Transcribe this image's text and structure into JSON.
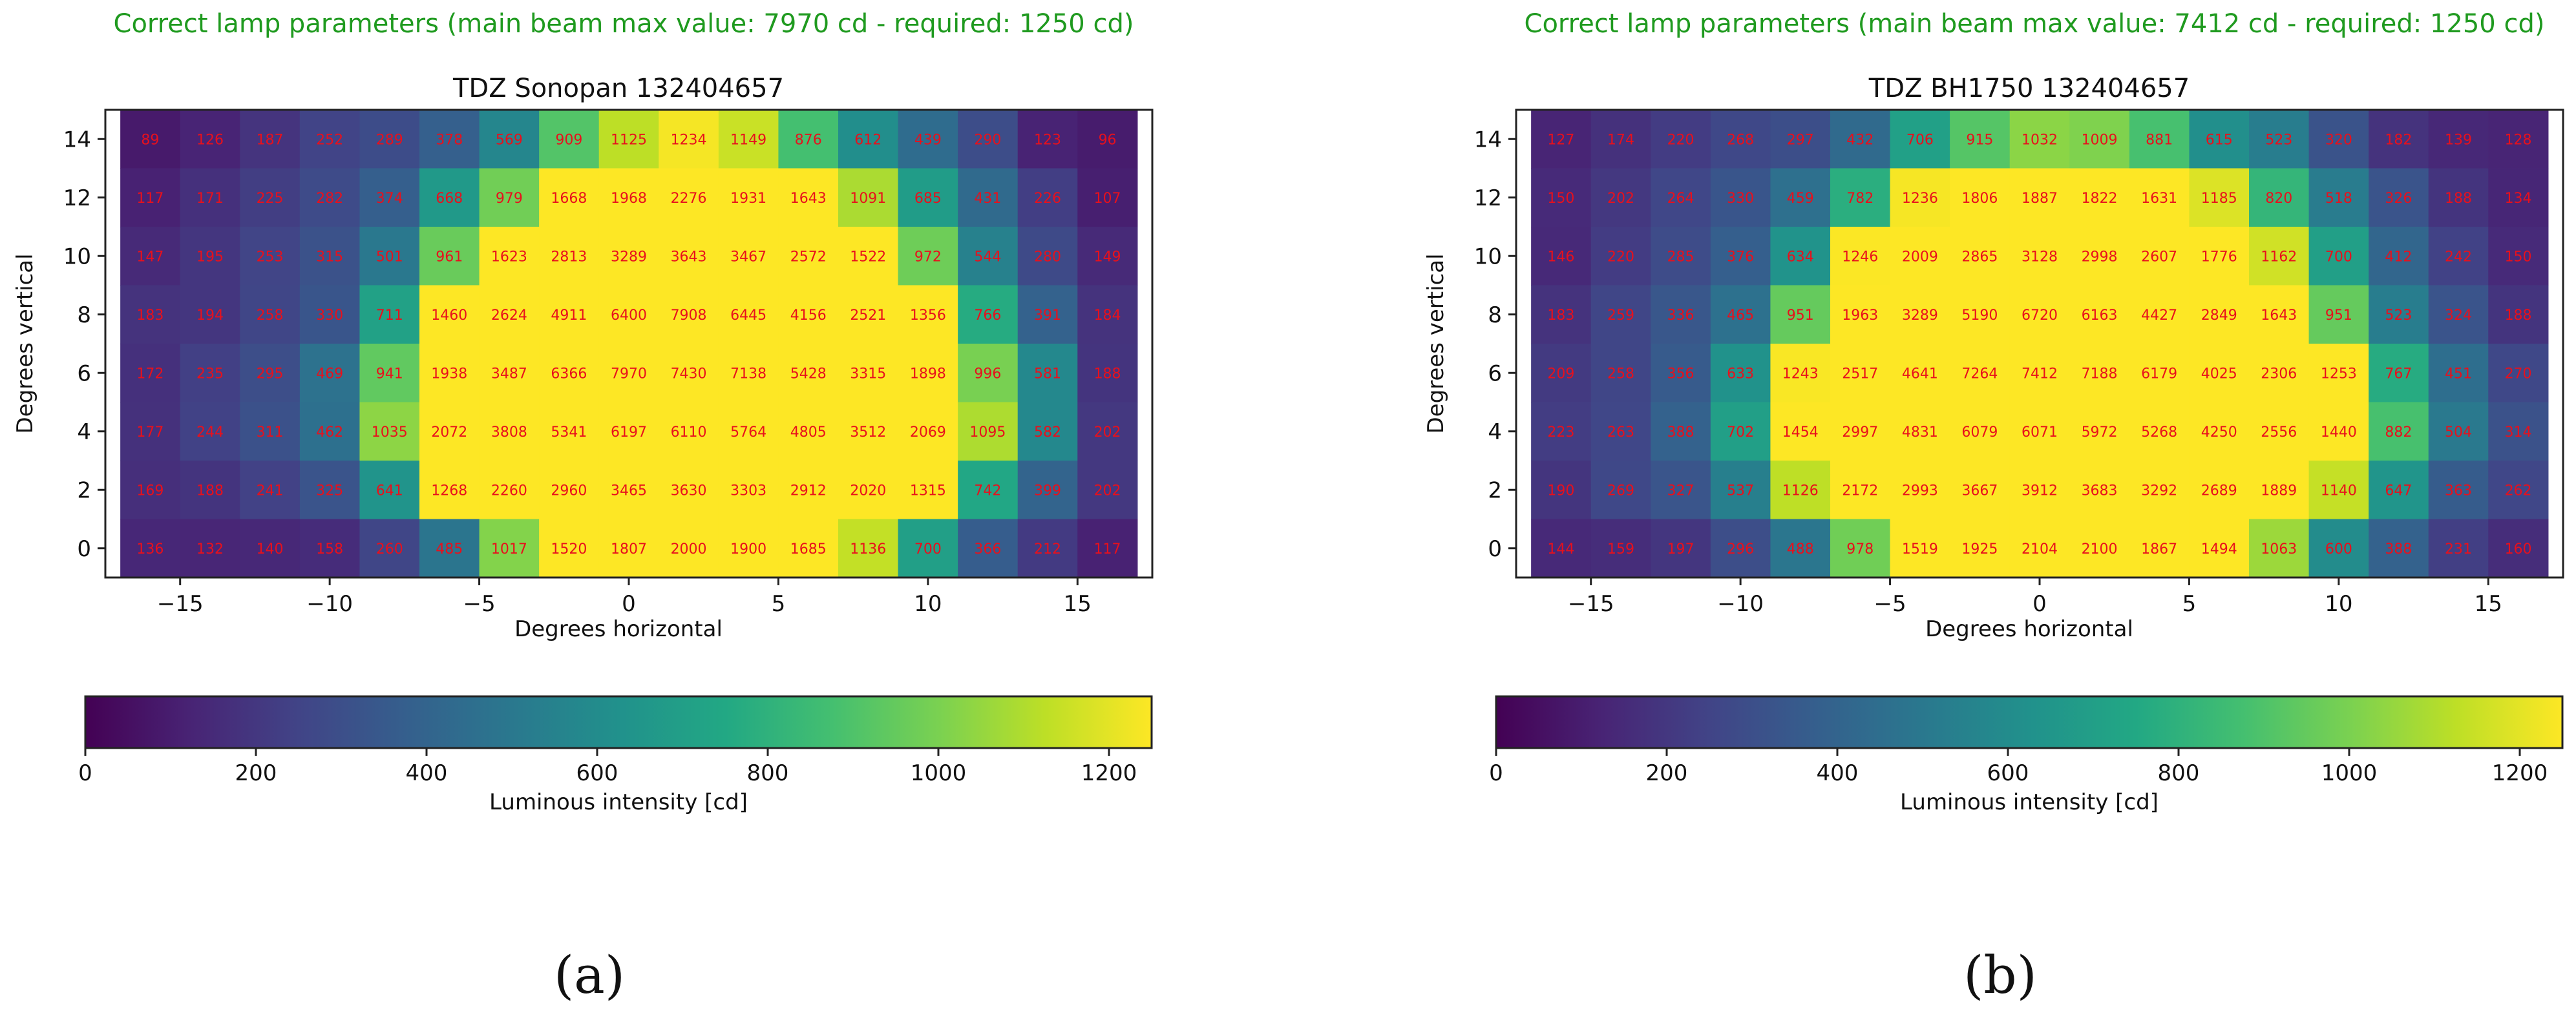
{
  "figure": {
    "subcaptions": [
      "(a)",
      "(b)"
    ]
  },
  "chart_data": [
    {
      "type": "heatmap",
      "status": "Correct lamp parameters (main beam max value: 7970 cd - required: 1250 cd)",
      "status_color": "#1f9a1f",
      "title": "TDZ Sonopan 132404657",
      "xlabel": "Degrees horizontal",
      "ylabel": "Degrees vertical",
      "x": [
        -16,
        -14,
        -12,
        -10,
        -8,
        -6,
        -4,
        -2,
        0,
        2,
        4,
        6,
        8,
        10,
        12,
        14,
        16
      ],
      "y": [
        14,
        12,
        10,
        8,
        6,
        4,
        2,
        0
      ],
      "xlim": [
        -17.5,
        17.5
      ],
      "ylim": [
        -1,
        15
      ],
      "xticks": [
        -15,
        -10,
        -5,
        0,
        5,
        10,
        15
      ],
      "xtick_labels": [
        "−15",
        "−10",
        "−5",
        "0",
        "5",
        "10",
        "15"
      ],
      "yticks": [
        0,
        2,
        4,
        6,
        8,
        10,
        12,
        14
      ],
      "ytick_labels": [
        "0",
        "2",
        "4",
        "6",
        "8",
        "10",
        "12",
        "14"
      ],
      "values": [
        [
          89,
          126,
          187,
          252,
          289,
          378,
          569,
          909,
          1125,
          1234,
          1149,
          876,
          612,
          439,
          290,
          123,
          96
        ],
        [
          117,
          171,
          225,
          282,
          374,
          668,
          979,
          1668,
          1968,
          2276,
          1931,
          1643,
          1091,
          685,
          431,
          226,
          107
        ],
        [
          147,
          195,
          253,
          315,
          501,
          961,
          1623,
          2813,
          3289,
          3643,
          3467,
          2572,
          1522,
          972,
          544,
          280,
          149
        ],
        [
          183,
          194,
          258,
          330,
          711,
          1460,
          2624,
          4911,
          6400,
          7908,
          6445,
          4156,
          2521,
          1356,
          766,
          391,
          184
        ],
        [
          172,
          235,
          295,
          469,
          941,
          1938,
          3487,
          6366,
          7970,
          7430,
          7138,
          5428,
          3315,
          1898,
          996,
          581,
          188
        ],
        [
          177,
          244,
          311,
          462,
          1035,
          2072,
          3808,
          5341,
          6197,
          6110,
          5764,
          4805,
          3512,
          2069,
          1095,
          582,
          202
        ],
        [
          169,
          188,
          241,
          325,
          641,
          1268,
          2260,
          2960,
          3465,
          3630,
          3303,
          2912,
          2020,
          1315,
          742,
          399,
          202
        ],
        [
          136,
          132,
          140,
          158,
          260,
          485,
          1017,
          1520,
          1807,
          2000,
          1900,
          1685,
          1136,
          700,
          366,
          212,
          117
        ]
      ],
      "colorbar": {
        "label": "Luminous intensity [cd]",
        "range": [
          0,
          1250
        ],
        "ticks": [
          0,
          200,
          400,
          600,
          800,
          1000,
          1200
        ],
        "tick_labels": [
          "0",
          "200",
          "400",
          "600",
          "800",
          "1000",
          "1200"
        ],
        "colormap": "viridis"
      }
    },
    {
      "type": "heatmap",
      "status": "Correct lamp parameters (main beam max value: 7412 cd - required: 1250 cd)",
      "status_color": "#1f9a1f",
      "title": "TDZ BH1750 132404657",
      "xlabel": "Degrees horizontal",
      "ylabel": "Degrees vertical",
      "x": [
        -16,
        -14,
        -12,
        -10,
        -8,
        -6,
        -4,
        -2,
        0,
        2,
        4,
        6,
        8,
        10,
        12,
        14,
        16
      ],
      "y": [
        14,
        12,
        10,
        8,
        6,
        4,
        2,
        0
      ],
      "xlim": [
        -17.5,
        17.5
      ],
      "ylim": [
        -1,
        15
      ],
      "xticks": [
        -15,
        -10,
        -5,
        0,
        5,
        10,
        15
      ],
      "xtick_labels": [
        "−15",
        "−10",
        "−5",
        "0",
        "5",
        "10",
        "15"
      ],
      "yticks": [
        0,
        2,
        4,
        6,
        8,
        10,
        12,
        14
      ],
      "ytick_labels": [
        "0",
        "2",
        "4",
        "6",
        "8",
        "10",
        "12",
        "14"
      ],
      "values": [
        [
          127,
          174,
          220,
          268,
          297,
          432,
          706,
          915,
          1032,
          1009,
          881,
          615,
          523,
          320,
          182,
          139,
          128
        ],
        [
          150,
          202,
          264,
          330,
          459,
          782,
          1236,
          1806,
          1887,
          1822,
          1631,
          1185,
          820,
          518,
          326,
          188,
          134
        ],
        [
          146,
          220,
          285,
          376,
          634,
          1246,
          2009,
          2865,
          3128,
          2998,
          2607,
          1776,
          1162,
          700,
          412,
          242,
          150
        ],
        [
          183,
          259,
          336,
          465,
          951,
          1963,
          3289,
          5190,
          6720,
          6163,
          4427,
          2849,
          1643,
          951,
          523,
          324,
          188
        ],
        [
          209,
          258,
          356,
          633,
          1243,
          2517,
          4641,
          7264,
          7412,
          7188,
          6179,
          4025,
          2306,
          1253,
          767,
          451,
          270
        ],
        [
          223,
          263,
          388,
          702,
          1454,
          2997,
          4831,
          6079,
          6071,
          5972,
          5268,
          4250,
          2556,
          1440,
          882,
          504,
          314
        ],
        [
          190,
          269,
          327,
          537,
          1126,
          2172,
          2993,
          3667,
          3912,
          3683,
          3292,
          2689,
          1889,
          1140,
          647,
          363,
          262
        ],
        [
          144,
          159,
          197,
          296,
          488,
          978,
          1519,
          1925,
          2104,
          2100,
          1867,
          1494,
          1063,
          600,
          388,
          231,
          160
        ]
      ],
      "colorbar": {
        "label": "Luminous intensity [cd]",
        "range": [
          0,
          1250
        ],
        "ticks": [
          0,
          200,
          400,
          600,
          800,
          1000,
          1200
        ],
        "tick_labels": [
          "0",
          "200",
          "400",
          "600",
          "800",
          "1000",
          "1200"
        ],
        "colormap": "viridis"
      }
    }
  ]
}
